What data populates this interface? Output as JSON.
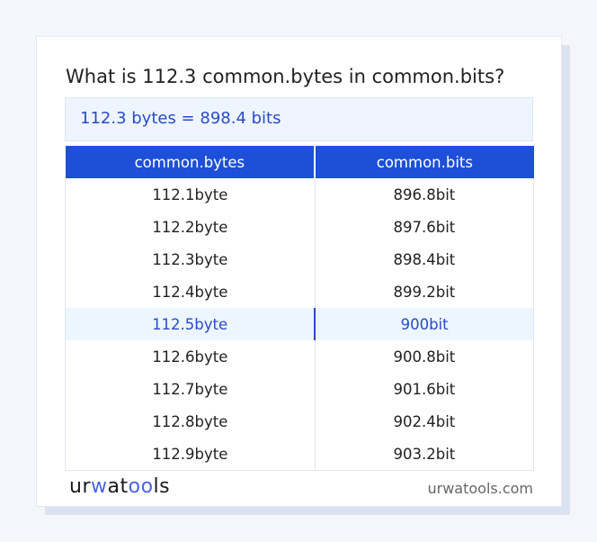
{
  "title": "What is 112.3 common.bytes in common.bits?",
  "result": "112.3 bytes = 898.4 bits",
  "table": {
    "headers": [
      "common.bytes",
      "common.bits"
    ],
    "rows": [
      [
        "112.1byte",
        "896.8bit"
      ],
      [
        "112.2byte",
        "897.6bit"
      ],
      [
        "112.3byte",
        "898.4bit"
      ],
      [
        "112.4byte",
        "899.2bit"
      ],
      [
        "112.5byte",
        "900bit"
      ],
      [
        "112.6byte",
        "900.8bit"
      ],
      [
        "112.7byte",
        "901.6bit"
      ],
      [
        "112.8byte",
        "902.4bit"
      ],
      [
        "112.9byte",
        "903.2bit"
      ]
    ],
    "highlighted_row": 4
  },
  "footer": {
    "logo": "urwatools",
    "site": "urwatools.com"
  },
  "colors": {
    "accent": "#1d4fd8",
    "highlight_text": "#2a4bc6"
  }
}
